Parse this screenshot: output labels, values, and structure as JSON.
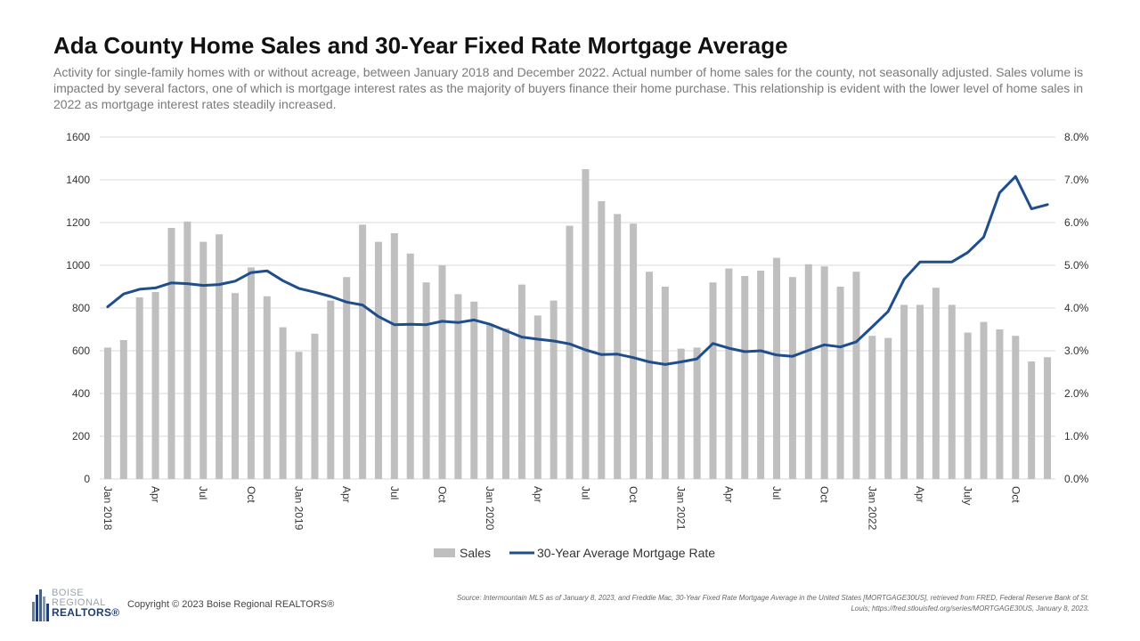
{
  "title": "Ada County Home Sales and 30-Year Fixed Rate Mortgage Average",
  "subtitle": "Activity for single-family homes with or without acreage, between January 2018 and December 2022. Actual number of home sales for the county, not seasonally adjusted. Sales volume is impacted by several factors, one of which is mortgage interest rates as the majority of buyers finance their home purchase. This relationship is evident with the lower level of home sales in 2022 as mortgage interest rates steadily increased.",
  "footer": {
    "logo_line1": "BOISE",
    "logo_line2": "REGIONAL",
    "logo_line3": "REALTORS®",
    "copyright": "Copyright © 2023 Boise Regional REALTORS®",
    "source": "Source: Intermountain MLS as of January 8, 2023, and Freddie Mac, 30-Year Fixed Rate Mortgage Average in the United States [MORTGAGE30US], retrieved from FRED, Federal Reserve Bank of St. Louis; https://fred.stlouisfed.org/series/MORTGAGE30US, January 8, 2023."
  },
  "colors": {
    "bars": "#bfbfbf",
    "line": "#1f4e8c",
    "grid": "#d9d9d9",
    "axis_text": "#333333"
  },
  "chart_data": {
    "type": "bar",
    "secondary_type": "line",
    "categories": [
      "Jan 2018",
      "Feb 2018",
      "Mar 2018",
      "Apr 2018",
      "May 2018",
      "Jun 2018",
      "Jul 2018",
      "Aug 2018",
      "Sep 2018",
      "Oct 2018",
      "Nov 2018",
      "Dec 2018",
      "Jan 2019",
      "Feb 2019",
      "Mar 2019",
      "Apr 2019",
      "May 2019",
      "Jun 2019",
      "Jul 2019",
      "Aug 2019",
      "Sep 2019",
      "Oct 2019",
      "Nov 2019",
      "Dec 2019",
      "Jan 2020",
      "Feb 2020",
      "Mar 2020",
      "Apr 2020",
      "May 2020",
      "Jun 2020",
      "Jul 2020",
      "Aug 2020",
      "Sep 2020",
      "Oct 2020",
      "Nov 2020",
      "Dec 2020",
      "Jan 2021",
      "Feb 2021",
      "Mar 2021",
      "Apr 2021",
      "May 2021",
      "Jun 2021",
      "Jul 2021",
      "Aug 2021",
      "Sep 2021",
      "Oct 2021",
      "Nov 2021",
      "Dec 2021",
      "Jan 2022",
      "Feb 2022",
      "Mar 2022",
      "Apr 2022",
      "May 2022",
      "Jun 2022",
      "Jul 2022",
      "Aug 2022",
      "Sep 2022",
      "Oct 2022",
      "Nov 2022",
      "Dec 2022"
    ],
    "tick_labels": [
      {
        "index": 0,
        "text": "Jan 2018"
      },
      {
        "index": 3,
        "text": "Apr"
      },
      {
        "index": 6,
        "text": "Jul"
      },
      {
        "index": 9,
        "text": "Oct"
      },
      {
        "index": 12,
        "text": "Jan 2019"
      },
      {
        "index": 15,
        "text": "Apr"
      },
      {
        "index": 18,
        "text": "Jul"
      },
      {
        "index": 21,
        "text": "Oct"
      },
      {
        "index": 24,
        "text": "Jan 2020"
      },
      {
        "index": 27,
        "text": "Apr"
      },
      {
        "index": 30,
        "text": "Jul"
      },
      {
        "index": 33,
        "text": "Oct"
      },
      {
        "index": 36,
        "text": "Jan 2021"
      },
      {
        "index": 39,
        "text": "Apr"
      },
      {
        "index": 42,
        "text": "Jul"
      },
      {
        "index": 45,
        "text": "Oct"
      },
      {
        "index": 48,
        "text": "Jan 2022"
      },
      {
        "index": 51,
        "text": "Apr"
      },
      {
        "index": 54,
        "text": "July"
      },
      {
        "index": 57,
        "text": "Oct"
      }
    ],
    "series": [
      {
        "name": "Sales",
        "type": "bar",
        "axis": "left",
        "values": [
          615,
          650,
          850,
          875,
          1175,
          1205,
          1110,
          1145,
          870,
          990,
          855,
          710,
          595,
          680,
          835,
          945,
          1190,
          1110,
          1150,
          1055,
          920,
          1000,
          865,
          830,
          720,
          705,
          910,
          765,
          835,
          1185,
          1450,
          1300,
          1240,
          1195,
          970,
          900,
          610,
          615,
          920,
          985,
          950,
          975,
          1035,
          945,
          1005,
          995,
          900,
          970,
          670,
          660,
          815,
          815,
          895,
          815,
          685,
          735,
          700,
          670,
          550,
          570
        ]
      },
      {
        "name": "30-Year Average Mortgage Rate",
        "type": "line",
        "axis": "right",
        "values": [
          4.03,
          4.33,
          4.44,
          4.47,
          4.59,
          4.57,
          4.53,
          4.55,
          4.63,
          4.83,
          4.87,
          4.64,
          4.46,
          4.37,
          4.27,
          4.14,
          4.07,
          3.8,
          3.61,
          3.62,
          3.61,
          3.69,
          3.66,
          3.72,
          3.62,
          3.47,
          3.32,
          3.27,
          3.23,
          3.16,
          3.02,
          2.91,
          2.92,
          2.84,
          2.74,
          2.68,
          2.74,
          2.81,
          3.17,
          3.06,
          2.98,
          3.0,
          2.9,
          2.87,
          3.01,
          3.14,
          3.09,
          3.21,
          3.56,
          3.92,
          4.67,
          5.08,
          5.08,
          5.08,
          5.3,
          5.66,
          6.7,
          7.08,
          6.32,
          6.42
        ]
      }
    ],
    "y_left": {
      "min": 0,
      "max": 1600,
      "step": 200,
      "ticks": [
        "0",
        "200",
        "400",
        "600",
        "800",
        "1000",
        "1200",
        "1400",
        "1600"
      ]
    },
    "y_right": {
      "min": 0,
      "max": 8,
      "step": 1,
      "ticks": [
        "0.0%",
        "1.0%",
        "2.0%",
        "3.0%",
        "4.0%",
        "5.0%",
        "6.0%",
        "7.0%",
        "8.0%"
      ]
    },
    "grid": true,
    "legend_position": "bottom-center",
    "legend": [
      {
        "label": "Sales",
        "kind": "bar"
      },
      {
        "label": "30-Year Average Mortgage Rate",
        "kind": "line"
      }
    ]
  }
}
